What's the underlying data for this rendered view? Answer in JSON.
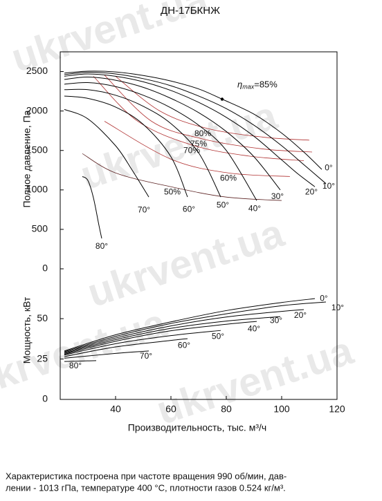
{
  "watermark": "ukrvent.ua",
  "note": [
    "Характеристика построена при частоте вращения 990 об/мин, дав-",
    "лении - 1013 гПа, температуре 400 °С, плотности газов 0.524 кг/м³."
  ],
  "chart_data": [
    {
      "type": "line",
      "title": "ДН-17БКНЖ",
      "ylabel": "Полное давление, Па",
      "xlim": [
        20,
        120
      ],
      "ylim": [
        0,
        2750
      ],
      "yticks": [
        0,
        500,
        1000,
        1500,
        2000,
        2500
      ],
      "series": [
        {
          "name": "0°",
          "color": "#000000",
          "x": [
            21.5,
            30,
            40,
            50,
            60,
            70,
            78.5,
            90,
            100,
            108,
            114.5
          ],
          "values": [
            2480,
            2505,
            2495,
            2450,
            2380,
            2280,
            2150,
            1960,
            1720,
            1480,
            1260
          ]
        },
        {
          "name": "10°",
          "color": "#000000",
          "x": [
            21.5,
            30,
            40,
            50,
            60,
            70,
            80,
            90,
            100,
            108,
            116
          ],
          "values": [
            2460,
            2490,
            2470,
            2410,
            2320,
            2190,
            2030,
            1820,
            1560,
            1320,
            1080
          ]
        },
        {
          "name": "20°",
          "color": "#000000",
          "x": [
            21.5,
            30,
            40,
            50,
            60,
            70,
            80,
            90,
            100,
            106,
            112
          ],
          "values": [
            2440,
            2470,
            2440,
            2370,
            2260,
            2110,
            1920,
            1680,
            1380,
            1200,
            1040
          ]
        },
        {
          "name": "30°",
          "color": "#000000",
          "x": [
            21.5,
            30,
            40,
            50,
            60,
            70,
            80,
            90,
            99.5
          ],
          "values": [
            2400,
            2430,
            2390,
            2300,
            2160,
            1980,
            1740,
            1420,
            1000
          ]
        },
        {
          "name": "40°",
          "color": "#000000",
          "x": [
            21.5,
            30,
            40,
            50,
            60,
            70,
            80,
            91
          ],
          "values": [
            2340,
            2360,
            2310,
            2200,
            2040,
            1820,
            1500,
            865
          ]
        },
        {
          "name": "50°",
          "color": "#000000",
          "x": [
            21.5,
            30,
            40,
            50,
            60,
            70,
            78
          ],
          "values": [
            2270,
            2270,
            2200,
            2060,
            1840,
            1470,
            910
          ]
        },
        {
          "name": "60°",
          "color": "#000000",
          "x": [
            21.5,
            30,
            40,
            50,
            60,
            66
          ],
          "values": [
            2190,
            2160,
            2050,
            1830,
            1420,
            910
          ]
        },
        {
          "name": "70°",
          "color": "#000000",
          "x": [
            21.5,
            30,
            40,
            46,
            52
          ],
          "values": [
            2020,
            1900,
            1560,
            1250,
            910
          ]
        },
        {
          "name": "80°",
          "color": "#000000",
          "x": [
            28,
            30,
            32,
            34,
            35
          ],
          "values": [
            1170,
            1120,
            900,
            550,
            385
          ]
        }
      ],
      "efficiency_curves": [
        {
          "name": "80%",
          "color": "#b03030",
          "x": [
            40,
            56,
            73,
            93,
            110
          ],
          "values": [
            2440,
            2000,
            1780,
            1670,
            1630
          ]
        },
        {
          "name": "75%",
          "color": "#b03030",
          "x": [
            36,
            53,
            71,
            93,
            111
          ],
          "values": [
            2455,
            1870,
            1650,
            1520,
            1480
          ]
        },
        {
          "name": "70%",
          "color": "#b03030",
          "x": [
            32,
            48,
            68,
            88,
            108
          ],
          "values": [
            2440,
            1870,
            1565,
            1430,
            1370
          ]
        },
        {
          "name": "60%",
          "color": "#b03030",
          "x": [
            36,
            60,
            80.75,
            103
          ],
          "values": [
            1870,
            1390,
            1215,
            1170
          ]
        },
        {
          "name": "50%",
          "color": "#5a2020",
          "x": [
            28,
            40,
            60,
            80,
            100
          ],
          "values": [
            1460,
            1215,
            1040,
            909,
            866
          ]
        }
      ],
      "annotation": {
        "symbol": "η",
        "subscript": "max",
        "text": "=85%",
        "x": 78.5,
        "y": 2150
      }
    },
    {
      "type": "line",
      "xlabel": "Производительность, тыс. м³/ч",
      "ylabel": "Мощность, кВт",
      "xlim": [
        20,
        120
      ],
      "xticks": [
        40,
        60,
        80,
        100,
        120
      ],
      "ylim": [
        0,
        80
      ],
      "yticks": [
        0,
        25,
        50
      ],
      "series": [
        {
          "name": "0°",
          "color": "#000000",
          "x": [
            21.5,
            40,
            60,
            80,
            100,
            112
          ],
          "values": [
            30,
            40,
            48,
            55,
            60,
            62.4
          ]
        },
        {
          "name": "10°",
          "color": "#000000",
          "x": [
            21.5,
            40,
            60,
            80,
            100,
            116
          ],
          "values": [
            29.5,
            39,
            47,
            53,
            58,
            60.3
          ]
        },
        {
          "name": "20°",
          "color": "#000000",
          "x": [
            21.5,
            40,
            60,
            80,
            100,
            108
          ],
          "values": [
            29,
            38,
            45.5,
            51,
            54.5,
            55.6
          ]
        },
        {
          "name": "30°",
          "color": "#000000",
          "x": [
            21.5,
            40,
            60,
            80,
            99.5
          ],
          "values": [
            28.5,
            37,
            44,
            48.5,
            51.3
          ]
        },
        {
          "name": "40°",
          "color": "#000000",
          "x": [
            21.5,
            40,
            60,
            80,
            91
          ],
          "values": [
            28,
            36,
            42.5,
            46.5,
            48.3
          ]
        },
        {
          "name": "50°",
          "color": "#000000",
          "x": [
            21.5,
            40,
            60,
            78
          ],
          "values": [
            27.5,
            34.5,
            39.5,
            42.7
          ]
        },
        {
          "name": "60°",
          "color": "#000000",
          "x": [
            21.5,
            40,
            60,
            66
          ],
          "values": [
            26.5,
            32.5,
            36.5,
            37.6
          ]
        },
        {
          "name": "70°",
          "color": "#000000",
          "x": [
            21.5,
            40,
            52
          ],
          "values": [
            25.5,
            28.5,
            30
          ]
        },
        {
          "name": "80°",
          "color": "#000000",
          "x": [
            21.5,
            33
          ],
          "values": [
            23.5,
            24
          ]
        }
      ]
    }
  ]
}
